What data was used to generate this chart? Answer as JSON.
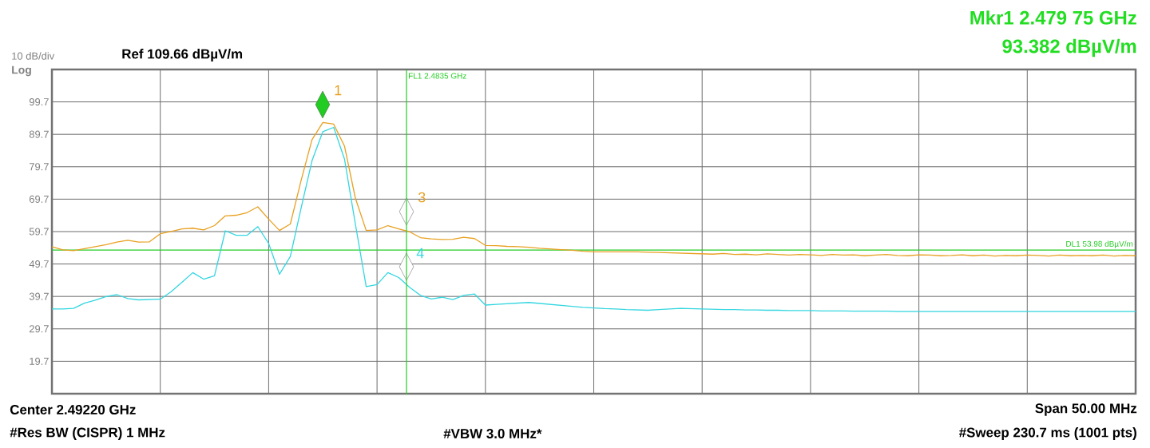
{
  "chart_data": {
    "type": "line",
    "ylim": [
      9.66,
      109.66
    ],
    "grid": true,
    "categories": [
      null,
      null,
      null,
      null,
      null,
      null,
      null,
      null,
      null,
      null,
      null,
      null,
      null,
      null,
      null,
      null,
      null,
      null,
      null,
      null,
      null,
      null,
      null,
      null,
      null,
      null,
      null,
      null,
      null,
      null,
      null,
      null,
      null,
      null,
      null,
      null,
      null,
      null,
      null,
      null,
      null,
      null,
      null,
      null,
      null,
      null,
      null,
      null,
      null,
      null,
      null,
      null,
      null,
      null,
      null,
      null,
      null,
      null,
      null,
      null,
      null,
      null,
      null,
      null,
      null,
      null,
      null,
      null,
      null,
      null,
      null,
      null,
      null,
      null,
      null,
      null,
      null,
      null,
      null,
      null,
      null,
      null,
      null,
      null,
      null,
      null,
      null,
      null,
      null,
      null,
      null,
      null,
      null,
      null,
      null,
      null,
      null,
      null,
      null,
      null,
      null
    ],
    "yticks": [
      {
        "value": 99.66,
        "label": "99.7"
      },
      {
        "value": 89.66,
        "label": "89.7"
      },
      {
        "value": 79.66,
        "label": "79.7"
      },
      {
        "value": 69.66,
        "label": "69.7"
      },
      {
        "value": 59.66,
        "label": "59.7"
      },
      {
        "value": 49.66,
        "label": "49.7"
      },
      {
        "value": 39.66,
        "label": "39.7"
      },
      {
        "value": 29.66,
        "label": "29.7"
      },
      {
        "value": 19.66,
        "label": "19.7"
      }
    ],
    "series": [
      {
        "color": "#e8a020",
        "values": [
          55.0,
          54.0,
          53.8,
          54.4,
          55.0,
          55.6,
          56.4,
          57.0,
          56.4,
          56.5,
          59.0,
          59.7,
          60.5,
          60.7,
          60.2,
          61.5,
          64.5,
          64.7,
          65.5,
          67.3,
          63.5,
          60.0,
          62.0,
          75.5,
          88.0,
          93.3,
          92.8,
          86.0,
          70.0,
          60.0,
          60.2,
          61.5,
          60.5,
          59.6,
          57.8,
          57.4,
          57.2,
          57.3,
          57.9,
          57.5,
          55.4,
          55.3,
          55.1,
          55.0,
          54.8,
          54.5,
          54.3,
          54.1,
          53.9,
          53.6,
          53.4,
          53.4,
          53.4,
          53.4,
          53.4,
          53.3,
          53.2,
          53.1,
          53.0,
          52.9,
          52.8,
          52.7,
          52.9,
          52.6,
          52.7,
          52.5,
          52.8,
          52.6,
          52.4,
          52.6,
          52.5,
          52.3,
          52.6,
          52.4,
          52.5,
          52.2,
          52.4,
          52.6,
          52.3,
          52.2,
          52.5,
          52.4,
          52.2,
          52.3,
          52.5,
          52.2,
          52.4,
          52.1,
          52.3,
          52.2,
          52.4,
          52.3,
          52.1,
          52.4,
          52.2,
          52.3,
          52.2,
          52.4,
          52.1,
          52.3,
          52.2
        ]
      },
      {
        "color": "#33d6e0",
        "values": [
          35.8,
          35.8,
          36.0,
          37.6,
          38.5,
          39.6,
          40.2,
          39.0,
          38.6,
          38.7,
          38.8,
          41.1,
          44.0,
          47.0,
          45.0,
          46.0,
          59.9,
          58.5,
          58.5,
          61.2,
          56.0,
          46.5,
          52.0,
          67.0,
          81.5,
          90.5,
          91.8,
          82.0,
          62.0,
          42.7,
          43.3,
          47.0,
          45.5,
          42.5,
          40.0,
          38.9,
          39.4,
          38.7,
          40.0,
          40.4,
          37.0,
          37.2,
          37.4,
          37.6,
          37.8,
          37.5,
          37.2,
          36.9,
          36.6,
          36.3,
          36.1,
          35.9,
          35.8,
          35.6,
          35.5,
          35.4,
          35.6,
          35.8,
          36.0,
          35.9,
          35.8,
          35.7,
          35.6,
          35.6,
          35.5,
          35.5,
          35.4,
          35.4,
          35.3,
          35.3,
          35.3,
          35.2,
          35.2,
          35.2,
          35.1,
          35.1,
          35.1,
          35.1,
          35.0,
          35.0,
          35.0,
          35.0,
          35.0,
          35.0,
          35.0,
          35.0,
          35.0,
          35.0,
          35.0,
          35.0,
          35.0,
          35.0,
          35.0,
          35.0,
          35.0,
          35.0,
          35.0,
          35.0,
          35.0,
          35.0,
          35.0
        ]
      }
    ],
    "ref_lines": [
      {
        "axis": "y",
        "value": 53.98,
        "label": "DL1 53.98 dBµV/m",
        "color": "#22cc22"
      }
    ],
    "annotations": [
      "10 dB/div",
      "Log",
      "Ref 109.66 dBµV/m",
      "Mkr1 2.479 75 GHz",
      "93.382 dBµV/m",
      "Center 2.49220 GHz",
      "Span 50.00 MHz",
      "#Res BW (CISPR) 1 MHz",
      "#VBW 3.0 MHz*",
      "#Sweep 230.7 ms (1001 pts)",
      "1",
      "3",
      "4",
      "FL1 2.4835 GHz"
    ]
  }
}
